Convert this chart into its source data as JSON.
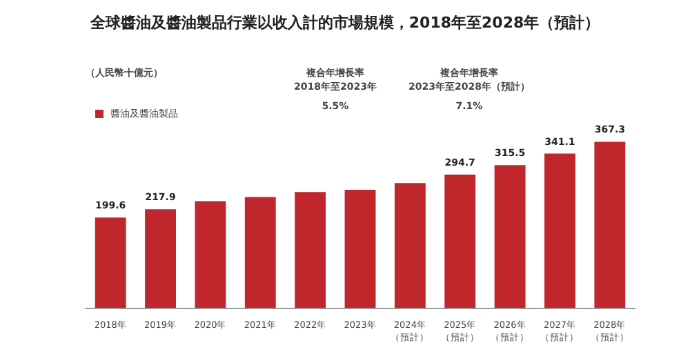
{
  "chart_data": {
    "type": "bar",
    "title": "全球醬油及醬油製品行業以收入計的市場規模，2018年至2028年（預計）",
    "categories": [
      "2018年",
      "2019年",
      "2020年",
      "2021年",
      "2022年",
      "2023年",
      "2024年（預計）",
      "2025年（預計）",
      "2026年（預計）",
      "2027年（預計）",
      "2028年（預計）"
    ],
    "series": [
      {
        "name": "醬油及醬油製品",
        "color": "#c0272d",
        "values": [
          199.6,
          217.9,
          236,
          245,
          256,
          261,
          276,
          294.7,
          315.5,
          341.1,
          367.3
        ],
        "value_labels": [
          "199.6",
          "217.9",
          null,
          null,
          null,
          null,
          null,
          "294.7",
          "315.5",
          "341.1",
          "367.3"
        ]
      }
    ],
    "annotations": [
      "（人民幣十億元）",
      "複合年增長率\n2018年至2023年",
      "5.5%",
      "複合年增長率\n2023年至2028年（預計）",
      "7.1%"
    ],
    "legend": "top left",
    "grid": false
  }
}
